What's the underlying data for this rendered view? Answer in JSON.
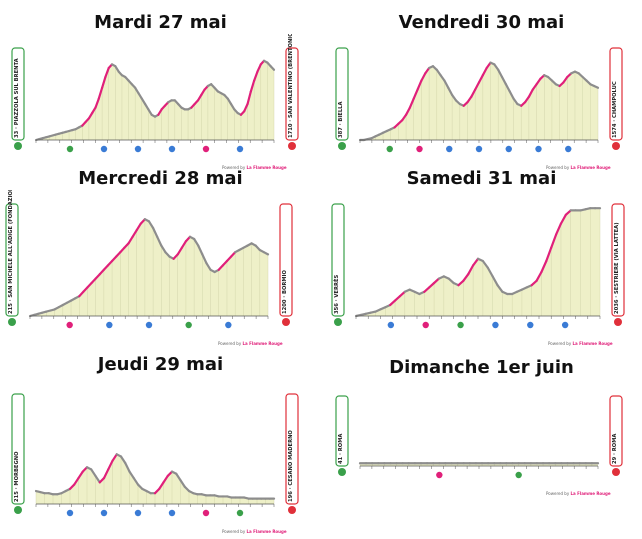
{
  "stages": [
    {
      "id": "mardi",
      "title": "Mardi 27 mai",
      "start_label": "33 · PIAZZOLA SUL BRENTA",
      "finish_label": "1710 · SAN VALENTINO (BRENTONICO)",
      "profile": [
        0,
        1,
        2,
        3,
        4,
        5,
        6,
        7,
        8,
        9,
        10,
        11,
        12,
        14,
        16,
        20,
        24,
        30,
        36,
        46,
        58,
        70,
        80,
        84,
        82,
        76,
        72,
        70,
        66,
        62,
        58,
        52,
        46,
        40,
        34,
        28,
        26,
        28,
        34,
        38,
        42,
        44,
        44,
        40,
        36,
        34,
        34,
        36,
        40,
        44,
        50,
        56,
        60,
        62,
        58,
        54,
        52,
        50,
        46,
        40,
        34,
        30,
        28,
        32,
        40,
        54,
        66,
        76,
        84,
        88,
        86,
        82,
        78
      ],
      "icons": [
        {
          "t": "sprint"
        },
        {
          "t": "kom"
        },
        {
          "t": "kom"
        },
        {
          "t": "kom"
        },
        {
          "t": "bonus"
        },
        {
          "t": "kom"
        }
      ],
      "credit_text": "Powered by",
      "credit_brand": "La Flamme Rouge"
    },
    {
      "id": "vendredi",
      "title": "Vendredi 30 mai",
      "start_label": "387 · BIELLA",
      "finish_label": "1574 · CHAMPOLUC",
      "profile": [
        0,
        0,
        1,
        2,
        4,
        6,
        8,
        10,
        12,
        14,
        18,
        22,
        28,
        36,
        46,
        56,
        66,
        74,
        80,
        82,
        78,
        72,
        66,
        58,
        50,
        44,
        40,
        38,
        42,
        48,
        56,
        64,
        72,
        80,
        86,
        84,
        78,
        70,
        62,
        54,
        46,
        40,
        38,
        42,
        48,
        56,
        62,
        68,
        72,
        70,
        66,
        62,
        60,
        64,
        70,
        74,
        76,
        74,
        70,
        66,
        62,
        60,
        58
      ],
      "icons": [
        {
          "t": "sprint"
        },
        {
          "t": "bonus"
        },
        {
          "t": "kom"
        },
        {
          "t": "kom"
        },
        {
          "t": "kom"
        },
        {
          "t": "kom"
        },
        {
          "t": "kom"
        }
      ],
      "credit_text": "Powered by",
      "credit_brand": "La Flamme Rouge"
    },
    {
      "id": "mercredi",
      "title": "Mercredi 28 mai",
      "start_label": "215 · SAN MICHELE ALL'ADIGE (FONDAZIONE MACH)",
      "finish_label": "1200 · BORMIO",
      "profile": [
        0,
        1,
        2,
        3,
        4,
        5,
        6,
        8,
        10,
        12,
        14,
        16,
        18,
        22,
        26,
        30,
        34,
        38,
        42,
        46,
        50,
        54,
        58,
        62,
        66,
        72,
        78,
        84,
        88,
        86,
        80,
        72,
        64,
        58,
        54,
        52,
        56,
        62,
        68,
        72,
        70,
        64,
        56,
        48,
        42,
        40,
        42,
        46,
        50,
        54,
        58,
        60,
        62,
        64,
        66,
        64,
        60,
        58,
        56
      ],
      "icons": [
        {
          "t": "bonus"
        },
        {
          "t": "kom"
        },
        {
          "t": "kom"
        },
        {
          "t": "sprint"
        },
        {
          "t": "kom"
        }
      ],
      "credit_text": "Powered by",
      "credit_brand": "La Flamme Rouge"
    },
    {
      "id": "samedi",
      "title": "Samedi 31 mai",
      "start_label": "356 · VERRÈS",
      "finish_label": "2036 · SESTRIERE (VIA LATTEA)",
      "profile": [
        0,
        1,
        2,
        3,
        4,
        6,
        8,
        10,
        14,
        18,
        22,
        24,
        22,
        20,
        22,
        26,
        30,
        34,
        36,
        34,
        30,
        28,
        32,
        38,
        46,
        52,
        50,
        44,
        36,
        28,
        22,
        20,
        20,
        22,
        24,
        26,
        28,
        32,
        40,
        50,
        62,
        74,
        84,
        92,
        96,
        96,
        96,
        97,
        98,
        98,
        98
      ],
      "icons": [
        {
          "t": "kom"
        },
        {
          "t": "bonus"
        },
        {
          "t": "sprint"
        },
        {
          "t": "kom"
        },
        {
          "t": "kom"
        },
        {
          "t": "kom"
        }
      ],
      "credit_text": "Powered by",
      "credit_brand": "La Flamme Rouge"
    },
    {
      "id": "jeudi",
      "title": "Jeudi 29 mai",
      "start_label": "215 · MORBEGNO",
      "finish_label": "196 · CESANO MADERNO",
      "profile": [
        12,
        11,
        10,
        10,
        9,
        9,
        10,
        12,
        14,
        18,
        24,
        30,
        34,
        32,
        26,
        20,
        24,
        32,
        40,
        46,
        44,
        38,
        30,
        24,
        18,
        14,
        12,
        10,
        10,
        14,
        20,
        26,
        30,
        28,
        22,
        16,
        12,
        10,
        9,
        9,
        8,
        8,
        8,
        7,
        7,
        7,
        6,
        6,
        6,
        6,
        5,
        5,
        5,
        5,
        5,
        5,
        5
      ],
      "icons": [
        {
          "t": "kom"
        },
        {
          "t": "kom"
        },
        {
          "t": "kom"
        },
        {
          "t": "kom"
        },
        {
          "t": "bonus"
        },
        {
          "t": "sprint"
        }
      ],
      "credit_text": "Powered by",
      "credit_brand": "La Flamme Rouge"
    },
    {
      "id": "dimanche",
      "title": "Dimanche 1er juin",
      "start_label": "41 · ROMA",
      "finish_label": "29 · ROMA",
      "profile": [
        4,
        4,
        4,
        4,
        4,
        4,
        4,
        4,
        4,
        4,
        4,
        4,
        4,
        4,
        4,
        4,
        4,
        4,
        4,
        4,
        4,
        4,
        4,
        4,
        4,
        4,
        4,
        4,
        4,
        4,
        4,
        4,
        4,
        4,
        4,
        4,
        4,
        4,
        4,
        4
      ],
      "icons": [
        {
          "t": "bonus"
        },
        {
          "t": "sprint"
        }
      ],
      "credit_text": "Powered by",
      "credit_brand": "La Flamme Rouge"
    }
  ],
  "colors": {
    "fill": "#eef0c8",
    "pink": "#e0207a",
    "grey": "#8d8d8d",
    "start": "#3aa04a",
    "finish": "#e0303a",
    "kom": "#3a7bd5",
    "sprint": "#3aa04a",
    "bonus": "#e0207a"
  }
}
